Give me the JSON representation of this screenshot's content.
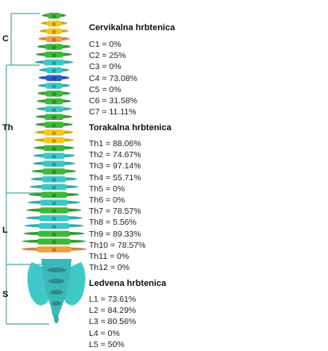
{
  "regions": [
    {
      "label": "C"
    },
    {
      "label": "Th"
    },
    {
      "label": "L"
    },
    {
      "label": "S"
    }
  ],
  "sections": [
    {
      "title": "Cervikalna hrbtenica",
      "items": [
        "C1 = 0%",
        "C2 = 25%",
        "C3 = 0%",
        "C4 = 73.08%",
        "C5 = 0%",
        "C6 = 31.58%",
        "C7 = 11.11%"
      ]
    },
    {
      "title": "Torakalna hrbtenica",
      "items": [
        "Th1 = 88.06%",
        "Th2 = 74.67%",
        "Th3 = 97.14%",
        "Th4 = 55.71%",
        "Th5 = 0%",
        "Th6 = 0%",
        "Th7 = 78.57%",
        "Th8 = 5.56%",
        "Th9 = 89.33%",
        "Th10 = 78.57%",
        "Th11 = 0%",
        "Th12 = 0%"
      ]
    },
    {
      "title": "Ledvena hrbtenica",
      "items": [
        "L1 = 73.61%",
        "L2 = 84.29%",
        "L3 = 80.56%",
        "L4 = 0%",
        "L5 = 50%"
      ]
    }
  ],
  "colors": {
    "cyan": "#3cc8c8",
    "green": "#3fb83a",
    "yellow": "#f2c81e",
    "orange": "#f0a040",
    "blue": "#2a5fcf",
    "sacrum": "#40c8c8",
    "bracket": "#4aa6a6"
  },
  "vertebra_colors": [
    "green",
    "yellow",
    "yellow",
    "orange",
    "green",
    "green",
    "cyan",
    "cyan",
    "blue",
    "cyan",
    "green",
    "green",
    "cyan",
    "green",
    "green",
    "yellow",
    "yellow",
    "green",
    "cyan",
    "cyan",
    "green",
    "cyan",
    "cyan",
    "green",
    "cyan",
    "green",
    "cyan",
    "cyan",
    "green",
    "green",
    "orange"
  ]
}
